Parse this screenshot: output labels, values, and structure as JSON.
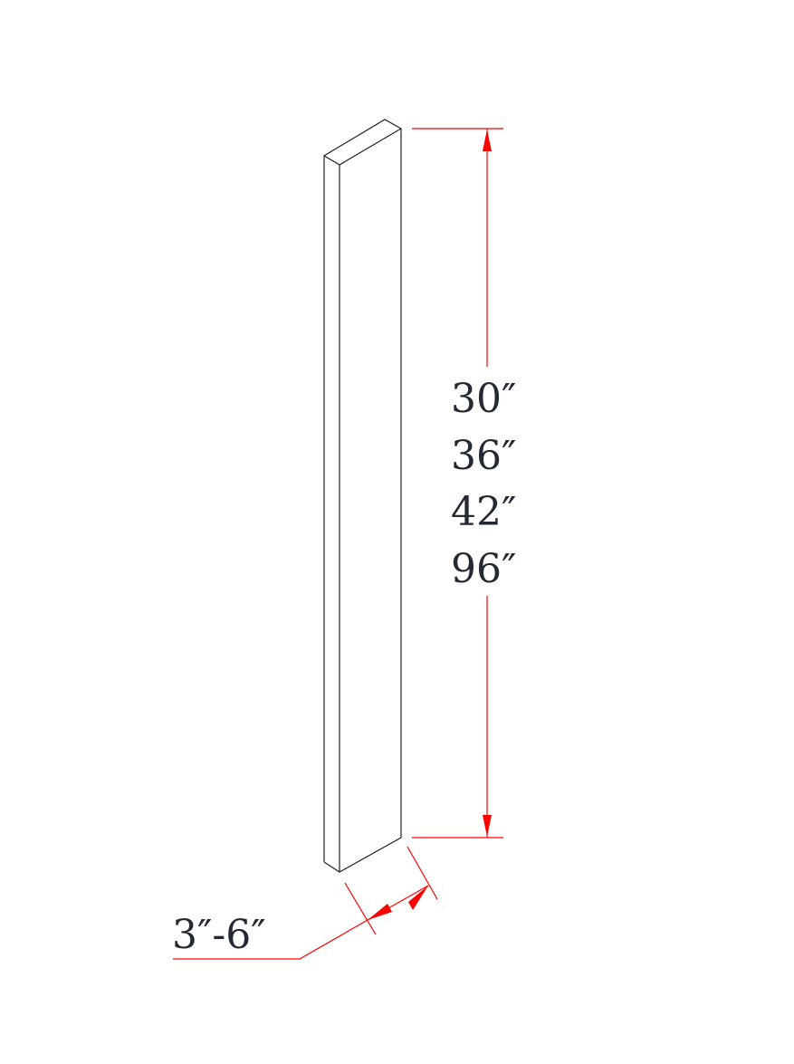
{
  "drawing": {
    "height_labels": [
      "30″",
      "36″",
      "42″",
      "96″"
    ],
    "width_label": "3″-6″",
    "colors": {
      "outline": "#222222",
      "dimension": "#ff0000",
      "text": "#232a33"
    }
  }
}
